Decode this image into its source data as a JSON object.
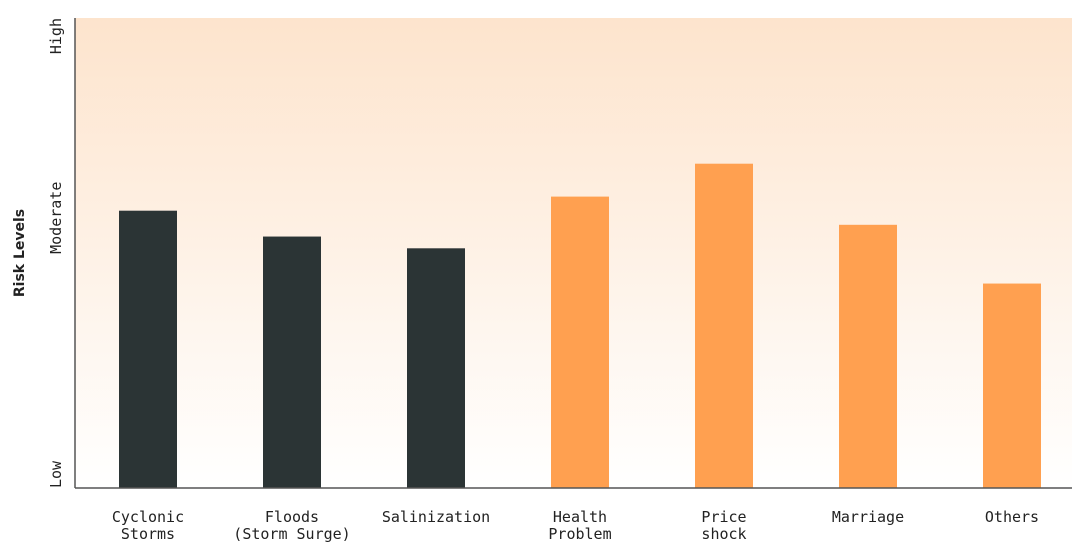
{
  "chart_data": {
    "type": "bar",
    "ylabel": "Risk Levels",
    "y_ticks": [
      {
        "label": "Low",
        "value": 0
      },
      {
        "label": "Moderate",
        "value": 0.575
      },
      {
        "label": "High",
        "value": 1
      }
    ],
    "ylim": [
      0,
      1
    ],
    "categories": [
      [
        "Cyclonic",
        "Storms"
      ],
      [
        "Floods",
        "(Storm Surge)"
      ],
      [
        "Salinization"
      ],
      [
        "Health",
        "Problem"
      ],
      [
        "Price",
        "shock"
      ],
      [
        "Marriage"
      ],
      [
        "Others"
      ]
    ],
    "values": [
      0.59,
      0.535,
      0.51,
      0.62,
      0.69,
      0.56,
      0.435
    ],
    "bar_colors": [
      "#2b3435",
      "#2b3435",
      "#2b3435",
      "#ffa050",
      "#ffa050",
      "#ffa050",
      "#ffa050"
    ],
    "background_gradient": [
      "#fde4cd",
      "#ffffff"
    ],
    "axis_color": "#555555",
    "grid": false,
    "legend": "none"
  }
}
